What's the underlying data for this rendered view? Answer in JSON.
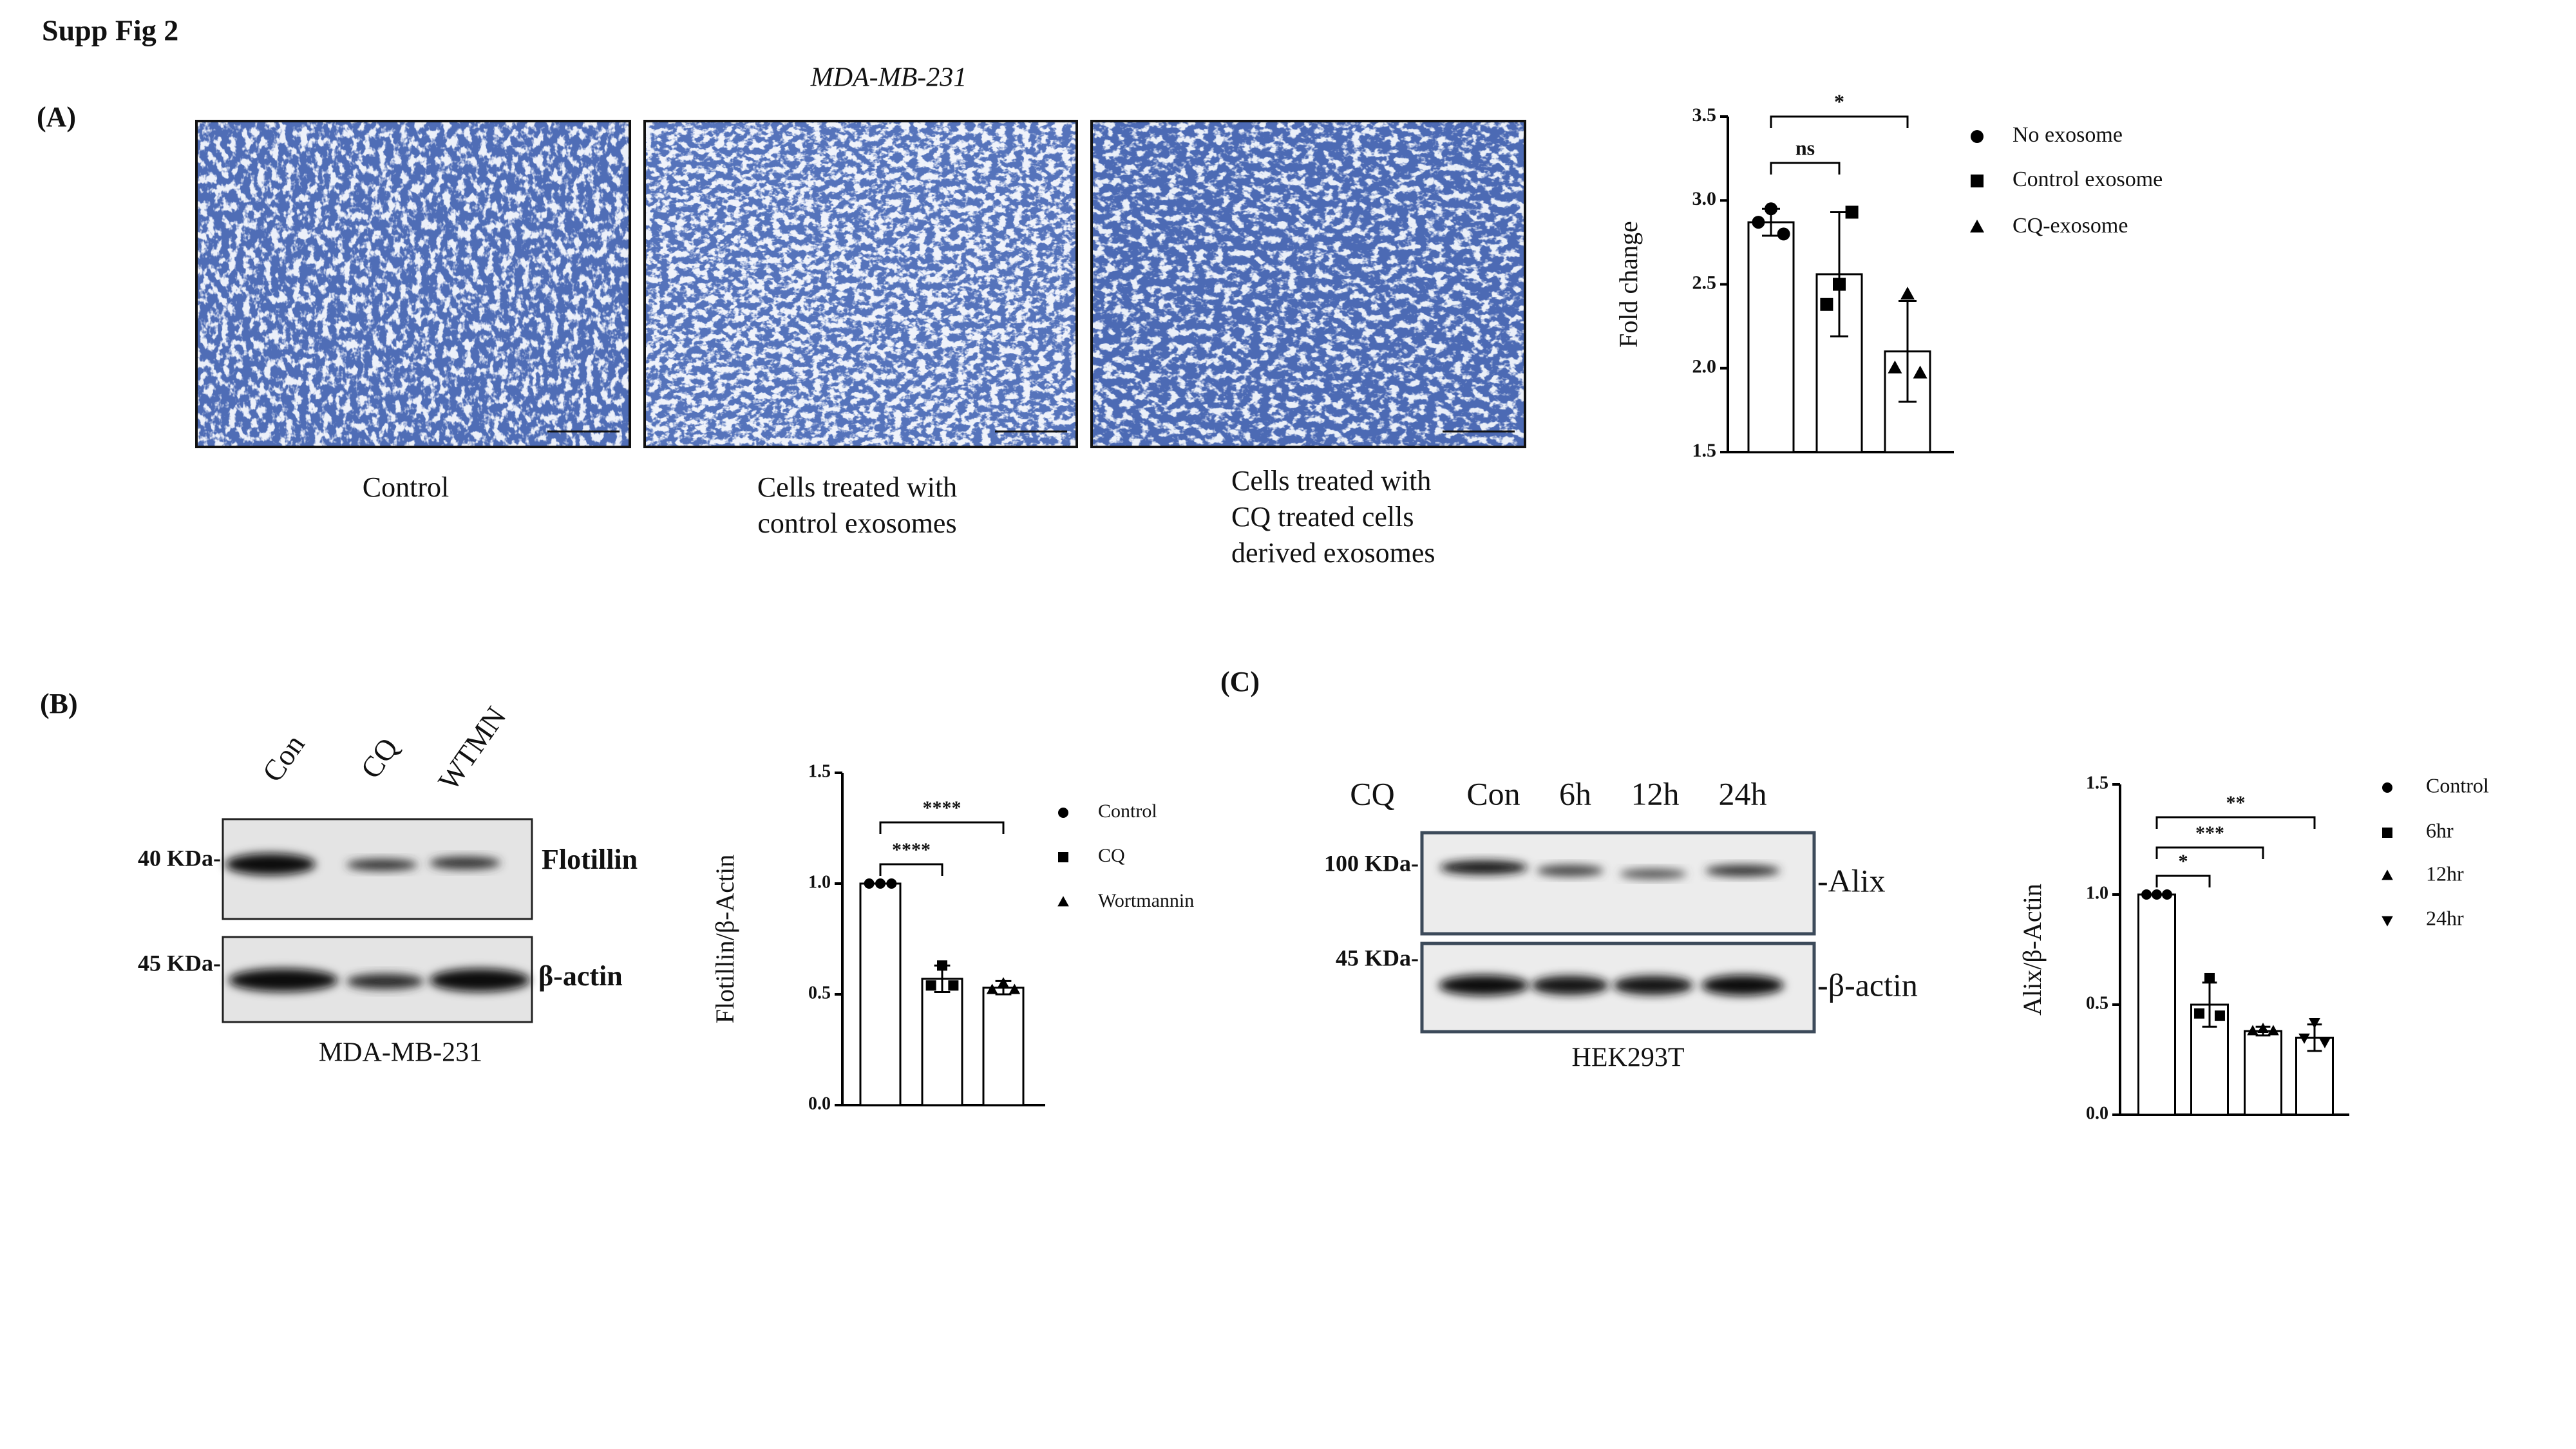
{
  "figure": {
    "title": "Supp Fig 2"
  },
  "panel_a": {
    "label": "(A)",
    "cell_line": "MDA-MB-231",
    "captions": [
      [
        "Control"
      ],
      [
        "Cells treated with",
        "control exosomes"
      ],
      [
        "Cells treated with",
        "CQ treated cells",
        "derived exosomes"
      ]
    ]
  },
  "panel_b": {
    "label": "(B)",
    "lanes": [
      "Con",
      "CQ",
      "WTMN"
    ],
    "markers": [
      "40 KDa-",
      "45 KDa-"
    ],
    "proteins": [
      "Flotillin",
      "β-actin"
    ],
    "cell_line": "MDA-MB-231"
  },
  "panel_c": {
    "label": "(C)",
    "treatment": "CQ",
    "lanes": [
      "Con",
      "6h",
      "12h",
      "24h"
    ],
    "markers": [
      "100 KDa-",
      "45 KDa-"
    ],
    "proteins": [
      "-Alix",
      "-β-actin"
    ],
    "cell_line": "HEK293T"
  },
  "chart_data": [
    {
      "type": "bar",
      "ylabel": "Fold change",
      "ylim": [
        1.5,
        3.5
      ],
      "yticks": [
        1.5,
        {
          "value": 2,
          "label": "2.0"
        },
        2.5,
        {
          "value": 3,
          "label": "3.0"
        },
        3.5
      ],
      "bar_color": "#ffffff",
      "series": [
        {
          "name": "No exosome",
          "color": "#000000",
          "marker": "circle",
          "values": [
            2.87
          ],
          "errors": [
            0.08
          ],
          "points": [
            2.87,
            2.95,
            2.8
          ]
        },
        {
          "name": "Control exosome",
          "color": "#000000",
          "marker": "square",
          "values": [
            2.56
          ],
          "errors": [
            0.37
          ],
          "points": [
            2.38,
            2.5,
            2.93
          ]
        },
        {
          "name": "CQ-exosome",
          "color": "#000000",
          "marker": "triangle",
          "values": [
            2.1
          ],
          "errors": [
            0.3
          ],
          "points": [
            2.0,
            2.44,
            1.97
          ]
        }
      ],
      "annotations": [
        "*",
        "ns"
      ]
    },
    {
      "type": "bar",
      "ylabel": "Flotillin/β-Actin",
      "ylim": [
        0,
        1.5
      ],
      "yticks": [
        {
          "value": 0,
          "label": "0.0"
        },
        0.5,
        {
          "value": 1,
          "label": "1.0"
        },
        1.5
      ],
      "bar_color": "#ffffff",
      "series": [
        {
          "name": "Control",
          "color": "#000000",
          "marker": "circle",
          "values": [
            1.0
          ],
          "errors": [
            0
          ],
          "points": [
            1.0,
            1.0,
            1.0
          ]
        },
        {
          "name": "CQ",
          "color": "#000000",
          "marker": "square",
          "values": [
            0.57
          ],
          "errors": [
            0.06
          ],
          "points": [
            0.54,
            0.63,
            0.54
          ]
        },
        {
          "name": "Wortmannin",
          "color": "#000000",
          "marker": "triangle",
          "values": [
            0.53
          ],
          "errors": [
            0.03
          ],
          "points": [
            0.52,
            0.55,
            0.52
          ]
        }
      ],
      "annotations": [
        "****",
        "****"
      ]
    },
    {
      "type": "bar",
      "ylabel": "Alix/β-Actin",
      "ylim": [
        0,
        1.5
      ],
      "yticks": [
        {
          "value": 0,
          "label": "0.0"
        },
        0.5,
        {
          "value": 1,
          "label": "1.0"
        },
        1.5
      ],
      "bar_color": "#ffffff",
      "series": [
        {
          "name": "Control",
          "color": "#000000",
          "marker": "circle",
          "values": [
            1.0
          ],
          "errors": [
            0
          ],
          "points": [
            1.0,
            1.0,
            1.0
          ]
        },
        {
          "name": "6hr",
          "color": "#000000",
          "marker": "square",
          "values": [
            0.5
          ],
          "errors": [
            0.1
          ],
          "points": [
            0.46,
            0.62,
            0.45
          ]
        },
        {
          "name": "12hr",
          "color": "#000000",
          "marker": "triangle",
          "values": [
            0.38
          ],
          "errors": [
            0.02
          ],
          "points": [
            0.38,
            0.39,
            0.38
          ]
        },
        {
          "name": "24hr",
          "color": "#000000",
          "marker": "triangle-down",
          "values": [
            0.35
          ],
          "errors": [
            0.06
          ],
          "points": [
            0.35,
            0.42,
            0.33
          ]
        }
      ],
      "annotations": [
        "*",
        "***",
        "**"
      ]
    }
  ]
}
